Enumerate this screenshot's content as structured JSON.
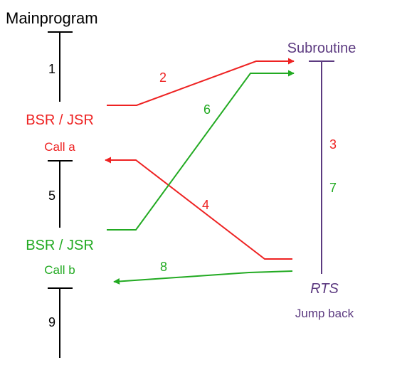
{
  "main_program": {
    "title": "Mainprogram",
    "segment_1": "1",
    "segment_5": "5",
    "segment_9": "9",
    "call_a": {
      "instruction": "BSR / JSR",
      "label": "Call a"
    },
    "call_b": {
      "instruction": "BSR / JSR",
      "label": "Call b"
    }
  },
  "subroutine": {
    "title": "Subroutine",
    "step_3": "3",
    "step_7": "7",
    "return_instruction": "RTS",
    "return_label": "Jump back"
  },
  "arrows": {
    "step_2": "2",
    "step_4": "4",
    "step_6": "6",
    "step_8": "8"
  },
  "colors": {
    "black": "#000000",
    "red": "#ee2222",
    "green": "#22aa22",
    "purple": "#5c3a80"
  }
}
